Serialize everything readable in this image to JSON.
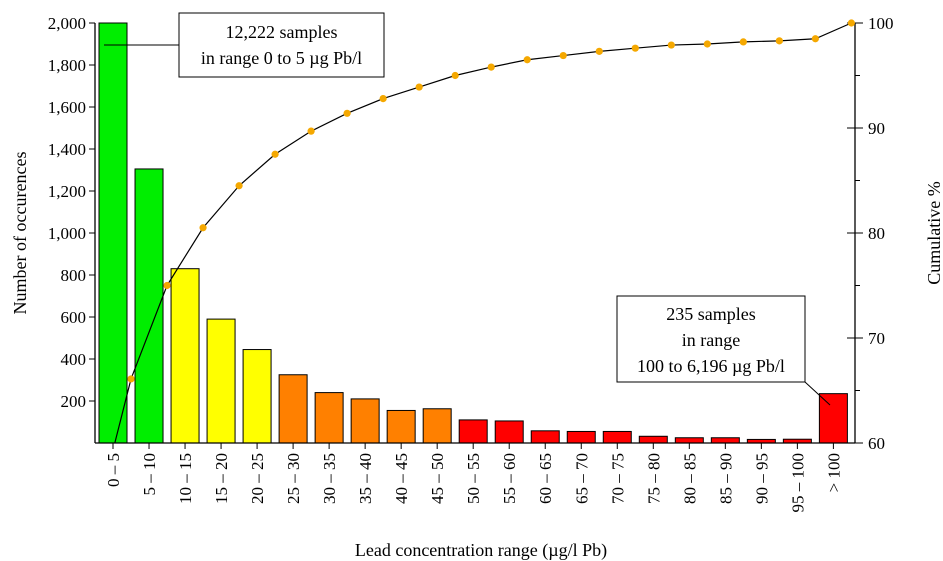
{
  "chart_data": {
    "type": "bar",
    "xlabel": "Lead concentration range  (µg/l Pb)",
    "ylabel": "Number of occurences",
    "y2label": "Cumulative %",
    "ylim": [
      0,
      2000
    ],
    "y2lim": [
      60,
      100
    ],
    "y_ticks": [
      "200",
      "400",
      "600",
      "800",
      "1,000",
      "1,200",
      "1,400",
      "1,600",
      "1,800",
      "2,000"
    ],
    "y2_ticks": [
      "60",
      "70",
      "80",
      "90",
      "100"
    ],
    "categories": [
      "0 – 5",
      "5 – 10",
      "10 – 15",
      "15 – 20",
      "20 – 25",
      "25 – 30",
      "30 – 35",
      "35 – 40",
      "40 – 45",
      "45 – 50",
      "50 – 55",
      "55 – 60",
      "60 – 65",
      "65 – 70",
      "70 – 75",
      "75 – 80",
      "80 – 85",
      "85 – 90",
      "90 – 95",
      "95 – 100",
      "> 100"
    ],
    "values": [
      2000,
      1305,
      830,
      590,
      445,
      325,
      240,
      210,
      155,
      163,
      110,
      105,
      58,
      55,
      55,
      32,
      25,
      25,
      17,
      18,
      235
    ],
    "bar_colors": [
      "#00ee00",
      "#00ee00",
      "#ffff00",
      "#ffff00",
      "#ffff00",
      "#ff8000",
      "#ff8000",
      "#ff8000",
      "#ff8000",
      "#ff8000",
      "#ff0000",
      "#ff0000",
      "#ff0000",
      "#ff0000",
      "#ff0000",
      "#ff0000",
      "#ff0000",
      "#ff0000",
      "#ff0000",
      "#ff0000",
      "#ff0000"
    ],
    "cumulative": [
      66.1,
      75.0,
      80.5,
      84.5,
      87.5,
      89.7,
      91.4,
      92.8,
      93.9,
      95.0,
      95.8,
      96.5,
      96.9,
      97.3,
      97.6,
      97.9,
      98.0,
      98.2,
      98.3,
      98.5,
      100
    ],
    "cumulative_start": 60,
    "line_color": "#000000",
    "marker_color": "#f5a800",
    "annotations": [
      {
        "lines": [
          "12,222 samples",
          "in range 0 to 5 µg Pb/l"
        ],
        "target": "0 – 5"
      },
      {
        "lines": [
          "235 samples",
          "in range",
          "100 to 6,196 µg Pb/l"
        ],
        "target": "> 100"
      }
    ]
  }
}
